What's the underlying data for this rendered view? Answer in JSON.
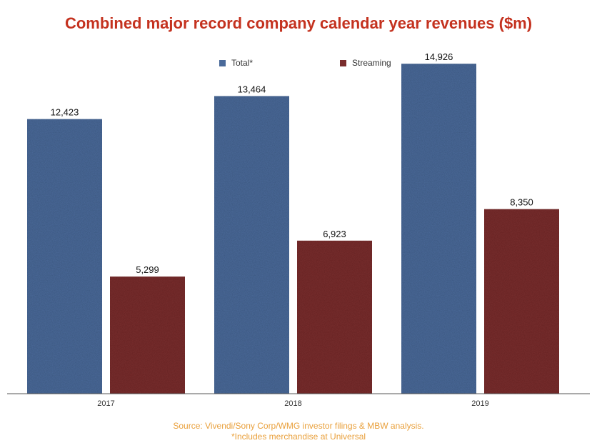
{
  "title": "Combined major record company calendar year revenues ($m)",
  "chart_data": {
    "type": "bar",
    "title": "Combined major record company calendar year revenues ($m)",
    "categories": [
      "2017",
      "2018",
      "2019"
    ],
    "series": [
      {
        "name": "Total*",
        "values": [
          12423,
          13464,
          14926
        ],
        "labels": [
          "12,423",
          "13,464",
          "14,926"
        ],
        "color": "#4a6a9a"
      },
      {
        "name": "Streaming",
        "values": [
          5299,
          6923,
          8350
        ],
        "labels": [
          "5,299",
          "6,923",
          "8,350"
        ],
        "color": "#7a2d2d"
      }
    ],
    "xlabel": "",
    "ylabel": "",
    "ylim": [
      0,
      16000
    ],
    "grid": false,
    "legend_position": "top-center"
  },
  "source": {
    "line1": "Source: Vivendi/Sony Corp/WMG investor filings & MBW analysis.",
    "line2": "*Includes merchandise at Universal"
  }
}
